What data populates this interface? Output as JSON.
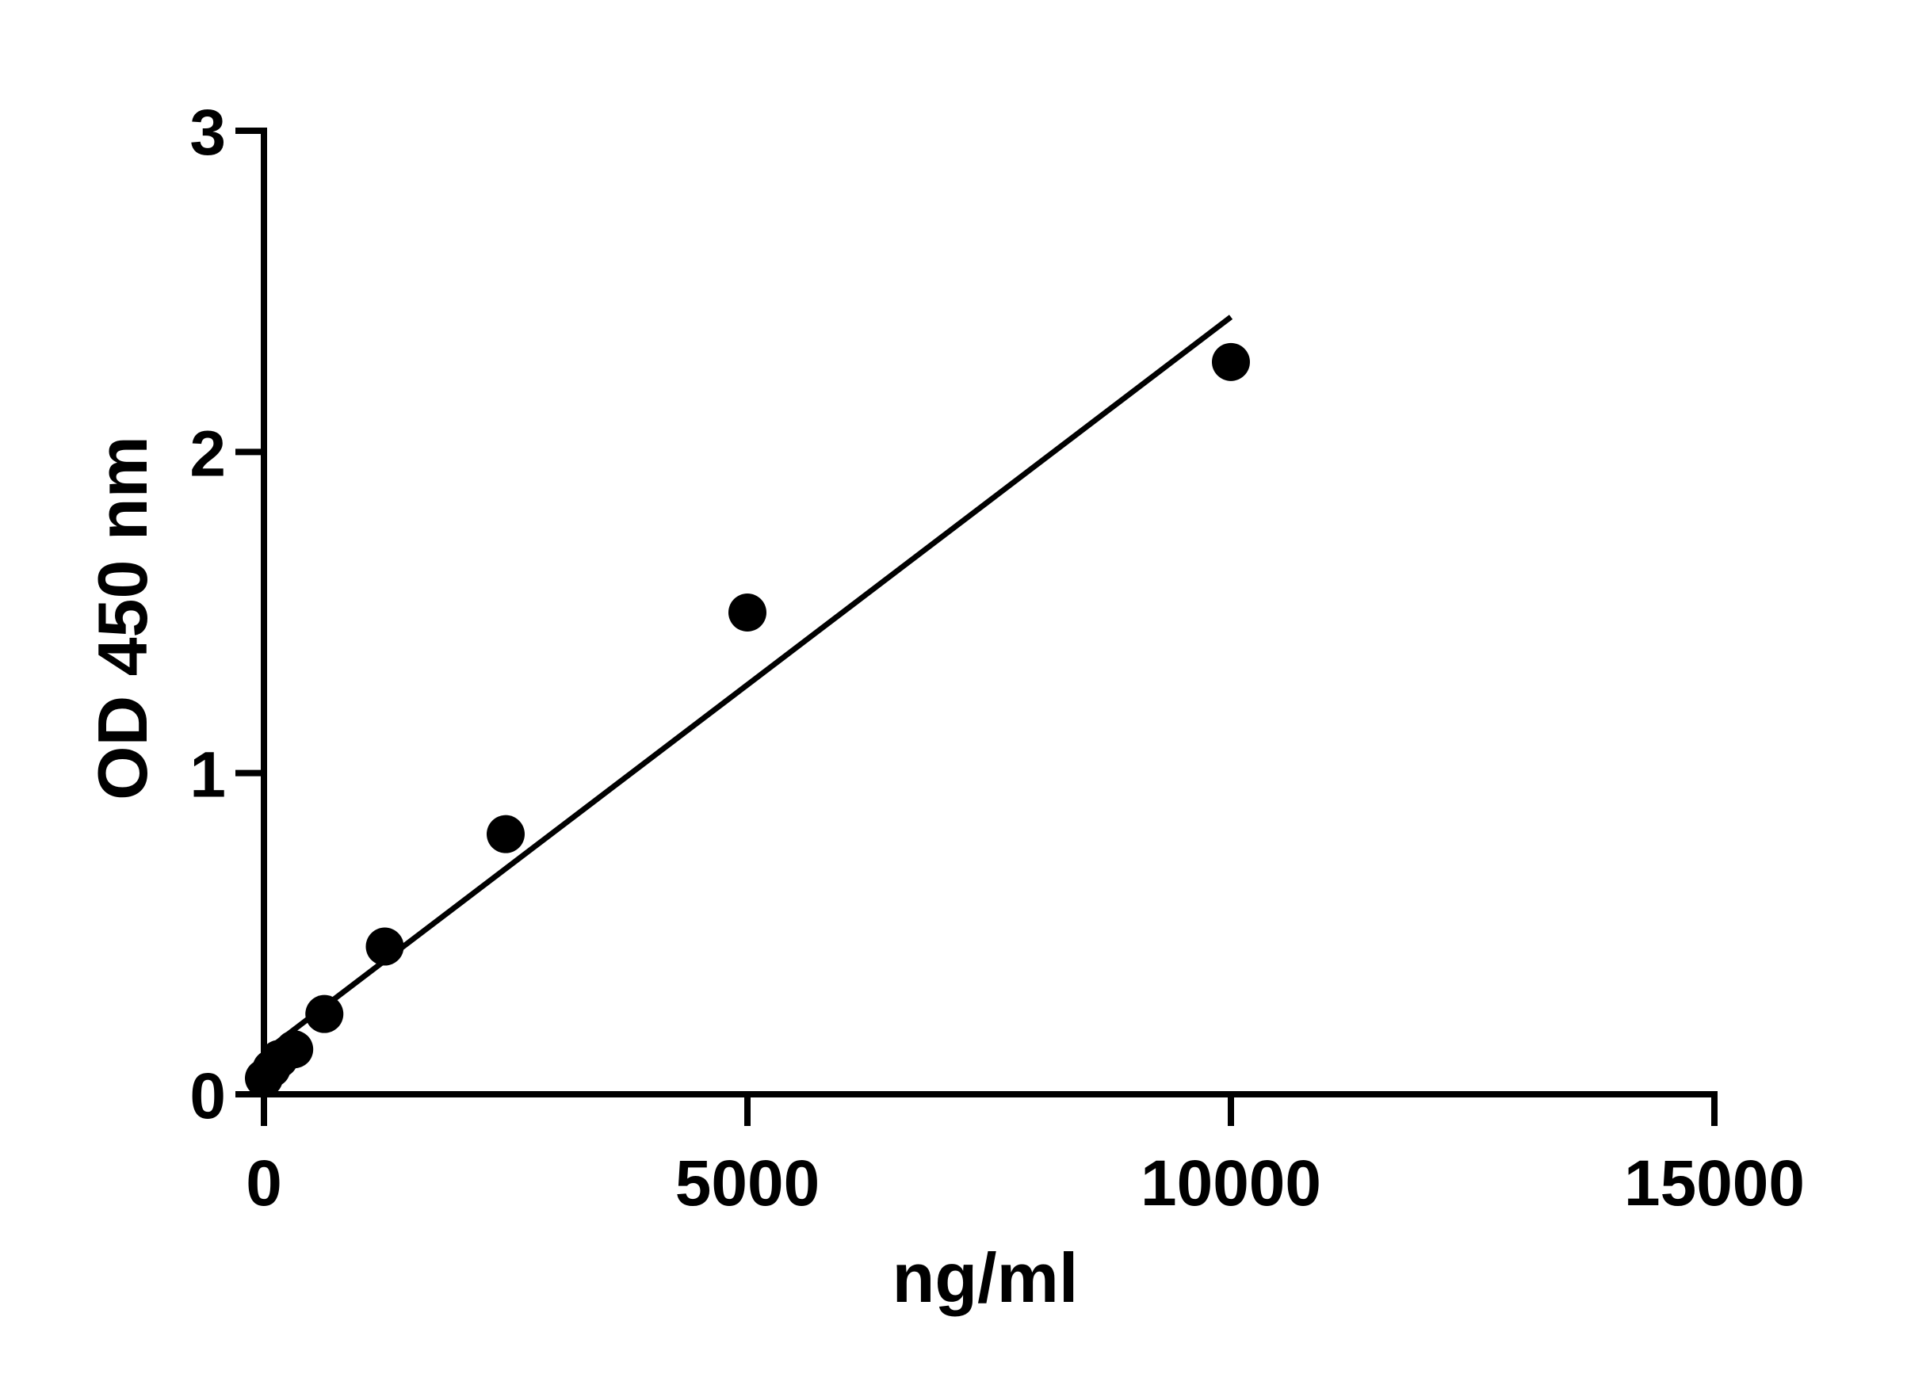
{
  "chart_data": {
    "type": "scatter",
    "title": "",
    "xlabel": "ng/ml",
    "ylabel": "OD 450 nm",
    "xlim": [
      0,
      15000
    ],
    "ylim": [
      0,
      3
    ],
    "x_ticks": [
      0,
      5000,
      10000,
      15000
    ],
    "x_tick_labels": [
      "0",
      "5000",
      "10000",
      "15000"
    ],
    "y_ticks": [
      0,
      1,
      2,
      3
    ],
    "y_tick_labels": [
      "0",
      "1",
      "2",
      "3"
    ],
    "grid": false,
    "legend": "none",
    "series": [
      {
        "marker": "filled-circle",
        "color": "#000000",
        "x": [
          0,
          78,
          156,
          313,
          625,
          1250,
          2500,
          5000,
          10000
        ],
        "y": [
          0.05,
          0.08,
          0.11,
          0.14,
          0.25,
          0.46,
          0.81,
          1.5,
          2.28
        ]
      }
    ],
    "fit_line": {
      "color": "#000000",
      "x": [
        0,
        10000
      ],
      "y": [
        0.13,
        2.42
      ]
    }
  }
}
